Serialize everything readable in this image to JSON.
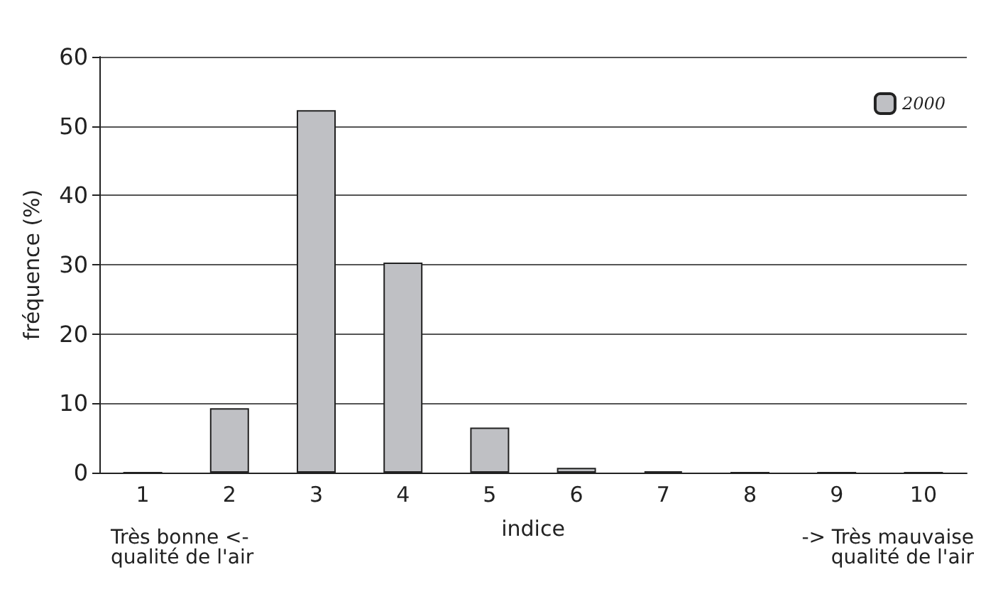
{
  "chart_data": {
    "type": "bar",
    "xlabel": "indice",
    "ylabel": "fréquence (%)",
    "categories": [
      "1",
      "2",
      "3",
      "4",
      "5",
      "6",
      "7",
      "8",
      "9",
      "10"
    ],
    "series": [
      {
        "name": "2000",
        "color": "#bfc0c4",
        "values": [
          0,
          9.3,
          52.3,
          30.3,
          6.5,
          0.7,
          0.2,
          0,
          0,
          0
        ]
      }
    ],
    "ylim": [
      0,
      60
    ],
    "yticks": [
      0,
      10,
      20,
      30,
      40,
      50,
      60
    ],
    "grid": "y",
    "legend": "top right",
    "annotations": [
      "Très bonne <-\nqualité de l'air",
      "-> Très mauvaise\nqualité de l'air"
    ]
  }
}
